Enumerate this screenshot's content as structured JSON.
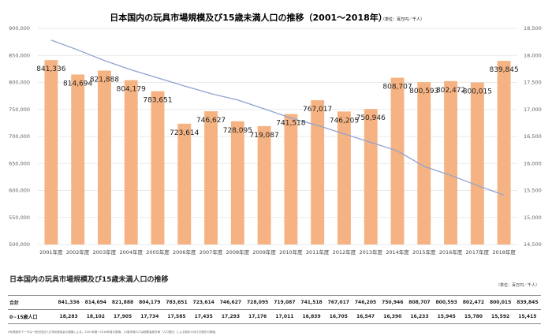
{
  "chart_data": {
    "type": "bar",
    "title": "日本国内の玩具市場規模及び15歳未満人口の推移（2001〜2018年）",
    "unit_label": "（単位：百万円／千人）",
    "categories": [
      "2001年度",
      "2002年度",
      "2003年度",
      "2004年度",
      "2005年度",
      "2006年度",
      "2007年度",
      "2008年度",
      "2009年度",
      "2010年度",
      "2011年度",
      "2012年度",
      "2013年度",
      "2014年度",
      "2015年度",
      "2016年度",
      "2017年度",
      "2018年度"
    ],
    "series": [
      {
        "name": "合計",
        "type": "bar",
        "axis": "left",
        "color": "#f5b383",
        "values": [
          841336,
          814694,
          821888,
          804179,
          783651,
          723614,
          746627,
          728095,
          719087,
          741518,
          767017,
          746205,
          750946,
          808707,
          800593,
          802472,
          800015,
          839845
        ],
        "value_labels": [
          "841,336",
          "814,694",
          "821,888",
          "804,179",
          "783,651",
          "723,614",
          "746,627",
          "728,095",
          "719,087",
          "741,518",
          "767,017",
          "746,205",
          "750,946",
          "808,707",
          "800,593",
          "802,472",
          "800,015",
          "839,845"
        ]
      },
      {
        "name": "0~15歳人口",
        "type": "line",
        "axis": "right",
        "color": "#8fa3cf",
        "values": [
          18283,
          18102,
          17905,
          17734,
          17585,
          17435,
          17293,
          17176,
          17011,
          16839,
          16705,
          16547,
          16390,
          16233,
          15945,
          15780,
          15592,
          15415
        ]
      }
    ],
    "y_left": {
      "min": 500000,
      "max": 900000,
      "ticks": [
        900000,
        850000,
        800000,
        750000,
        700000,
        650000,
        600000,
        550000,
        500000
      ],
      "tick_labels": [
        "900,000",
        "850,000",
        "800,000",
        "750,000",
        "700,000",
        "650,000",
        "600,000",
        "550,000",
        "500,000"
      ]
    },
    "y_right": {
      "min": 14500,
      "max": 18500,
      "ticks": [
        18500,
        18000,
        17500,
        17000,
        16500,
        16000,
        15500,
        15000,
        14500
      ],
      "tick_labels": [
        "18,500",
        "18,000",
        "17,500",
        "17,000",
        "16,500",
        "16,000",
        "15,500",
        "15,000",
        "14,500"
      ]
    },
    "grid": true,
    "legend": "none"
  },
  "table": {
    "title": "日本国内の玩具市場規模及び15歳未満人口の推移",
    "unit": "（単位：百万円／千人）",
    "rows": [
      {
        "label": "合計",
        "values": [
          "841,336",
          "814,694",
          "821,888",
          "804,179",
          "783,651",
          "723,614",
          "746,627",
          "728,095",
          "719,087",
          "741,518",
          "767,017",
          "746,205",
          "750,946",
          "808,707",
          "800,593",
          "802,472",
          "800,015",
          "839,845"
        ]
      },
      {
        "label": "0~15歳人口",
        "values": [
          "18,283",
          "18,102",
          "17,905",
          "17,734",
          "17,585",
          "17,435",
          "17,293",
          "17,176",
          "17,011",
          "16,839",
          "16,705",
          "16,547",
          "16,390",
          "16,233",
          "15,945",
          "15,780",
          "15,592",
          "15,415"
        ]
      }
    ],
    "note": "※玩具統計データは一般社団法人日本玩具協会の調査による。2001年度〜2018年度の数値。15歳未満人口は総務省統計局「人口推計」による各年10月1日現在の数値。"
  },
  "colors": {
    "bar": "#f5b383",
    "line": "#8fa3cf",
    "grid": "#e3e3e3"
  }
}
